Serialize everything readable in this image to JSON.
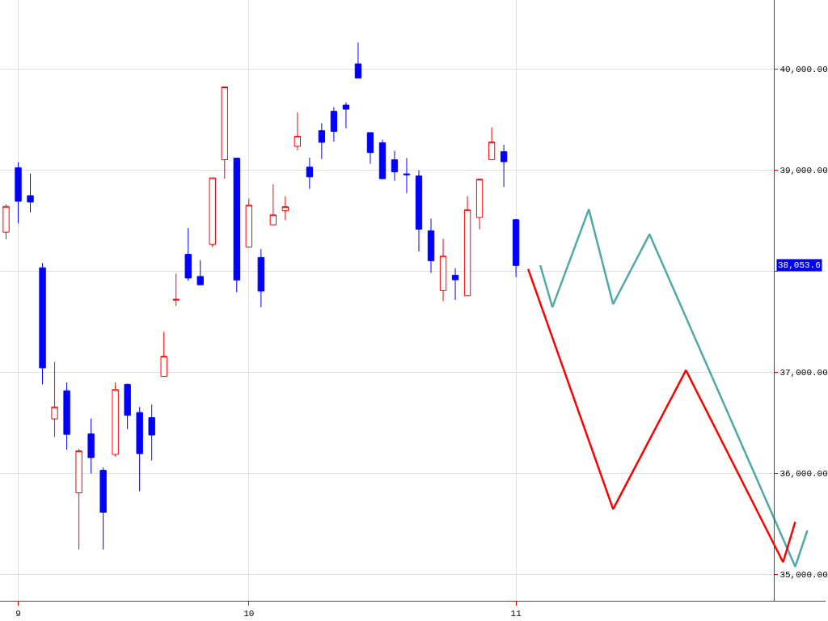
{
  "chart_data": {
    "type": "candlestick",
    "categories": [
      null,
      "9",
      null,
      null,
      null,
      null,
      null,
      null,
      null,
      null,
      null,
      null,
      null,
      null,
      null,
      null,
      null,
      null,
      null,
      null,
      "10",
      null,
      null,
      null,
      null,
      null,
      null,
      null,
      null,
      null,
      null,
      null,
      null,
      null,
      null,
      null,
      null,
      null,
      null,
      null,
      null,
      null,
      "11",
      null,
      null,
      null,
      null,
      null,
      null,
      null,
      null,
      null,
      null,
      null,
      null,
      null,
      null,
      null,
      null,
      null,
      null,
      null,
      null,
      null,
      null,
      null,
      null,
      null
    ],
    "ohlc": [
      [
        38383,
        38658,
        38313,
        38638
      ],
      [
        39021,
        39076,
        38470,
        38689
      ],
      [
        38744,
        38963,
        38579,
        38681
      ],
      [
        38031,
        38078,
        36877,
        37041
      ],
      [
        36536,
        37100,
        36356,
        36654
      ],
      [
        36814,
        36896,
        36231,
        36383
      ],
      [
        35804,
        36239,
        35244,
        36219
      ],
      [
        36387,
        36540,
        35996,
        36153
      ],
      [
        36027,
        36055,
        35244,
        35612
      ],
      [
        36184,
        36896,
        36164,
        36826
      ],
      [
        36877,
        36884,
        36434,
        36571
      ],
      [
        36599,
        36654,
        35820,
        36192
      ],
      [
        36548,
        36677,
        36125,
        36376
      ],
      [
        36955,
        37397,
        36955,
        37155
      ],
      [
        37710,
        37973,
        37652,
        37718
      ],
      [
        38164,
        38423,
        37902,
        37929
      ],
      [
        37945,
        38106,
        37863,
        37863
      ],
      [
        38262,
        38920,
        38235,
        38920
      ],
      [
        39100,
        39820,
        38912,
        39820
      ],
      [
        39115,
        39115,
        37789,
        37910
      ],
      [
        38235,
        38716,
        38235,
        38650
      ],
      [
        38133,
        38215,
        37640,
        37800
      ],
      [
        38456,
        38859,
        38456,
        38554
      ],
      [
        38595,
        38739,
        38501,
        38635
      ],
      [
        39232,
        39568,
        39192,
        39333
      ],
      [
        39027,
        39120,
        38811,
        38930
      ],
      [
        39387,
        39461,
        39107,
        39272
      ],
      [
        39579,
        39619,
        39280,
        39381
      ],
      [
        39640,
        39667,
        39411,
        39600
      ],
      [
        40048,
        40259,
        39909,
        39909
      ],
      [
        39368,
        39368,
        39059,
        39171
      ],
      [
        39267,
        39299,
        38912,
        38912
      ],
      [
        39099,
        39187,
        38891,
        38981
      ],
      [
        38960,
        39117,
        38770,
        38952
      ],
      [
        38939,
        38995,
        38192,
        38413
      ],
      [
        38397,
        38517,
        37981,
        38101
      ],
      [
        37805,
        38317,
        37701,
        38146
      ],
      [
        37957,
        38026,
        37712,
        37912
      ],
      [
        37754,
        38739,
        37754,
        38605
      ],
      [
        38528,
        38909,
        38410,
        38909
      ],
      [
        39101,
        39419,
        39093,
        39275
      ],
      [
        39179,
        39248,
        38829,
        39080
      ],
      [
        38506,
        38514,
        37939,
        38053.6
      ],
      null,
      null,
      null,
      null,
      null,
      null,
      null,
      null,
      null,
      null,
      null,
      null,
      null,
      null,
      null,
      null,
      null,
      null,
      null,
      null,
      null,
      null,
      null,
      null,
      null
    ],
    "colors": [
      "#ff0000",
      "#0000ff",
      "#0000ff",
      "#0000ff",
      "#ff0000",
      "#0000ff",
      "#ff0000",
      "#0000ff",
      "#0000ff",
      "#ff0000",
      "#0000ff",
      "#0000ff",
      "#0000ff",
      "#ff0000",
      "#ff0000",
      "#0000ff",
      "#0000ff",
      "#ff0000",
      "#ff0000",
      "#0000ff",
      "#ff0000",
      "#0000ff",
      "#ff0000",
      "#ff0000",
      "#ff0000",
      "#0000ff",
      "#0000ff",
      "#0000ff",
      "#0000ff",
      "#0000ff",
      "#0000ff",
      "#0000ff",
      "#0000ff",
      "#0000ff",
      "#0000ff",
      "#0000ff",
      "#ff0000",
      "#0000ff",
      "#ff0000",
      "#ff0000",
      "#ff0000",
      "#0000ff",
      "#0000ff",
      null,
      null,
      null,
      null,
      null,
      null,
      null,
      null,
      null,
      null,
      null,
      null,
      null,
      null,
      null,
      null,
      null,
      null,
      null,
      null,
      null,
      null,
      null,
      null,
      null
    ],
    "series": [
      {
        "type": "line",
        "color": "#52a8a8",
        "values": [
          null,
          null,
          null,
          null,
          null,
          null,
          null,
          null,
          null,
          null,
          null,
          null,
          null,
          null,
          null,
          null,
          null,
          null,
          null,
          null,
          null,
          null,
          null,
          null,
          null,
          null,
          null,
          null,
          null,
          null,
          null,
          null,
          null,
          null,
          null,
          null,
          null,
          null,
          null,
          null,
          null,
          null,
          null,
          null,
          38056,
          37641,
          null,
          null,
          38609,
          null,
          37671,
          null,
          null,
          38363,
          null,
          null,
          null,
          null,
          null,
          null,
          null,
          null,
          null,
          null,
          null,
          35074,
          35432,
          null
        ]
      },
      {
        "type": "line",
        "color": "#ff0000",
        "values": [
          null,
          null,
          null,
          null,
          null,
          null,
          null,
          null,
          null,
          null,
          null,
          null,
          null,
          null,
          null,
          null,
          null,
          null,
          null,
          null,
          null,
          null,
          null,
          null,
          null,
          null,
          null,
          null,
          null,
          null,
          null,
          null,
          null,
          null,
          null,
          null,
          null,
          null,
          null,
          null,
          null,
          null,
          null,
          38019,
          null,
          null,
          null,
          null,
          null,
          null,
          35643,
          null,
          null,
          null,
          null,
          null,
          37017,
          null,
          null,
          null,
          null,
          null,
          null,
          null,
          35118,
          35517,
          null,
          null
        ]
      }
    ],
    "ylim": [
      34736,
      40680
    ],
    "yticks": [
      {
        "value": 35000,
        "label": "35,000.00"
      },
      {
        "value": 36000,
        "label": "36,000.00"
      },
      {
        "value": 37000,
        "label": "37,000.00"
      },
      {
        "value": 38000,
        "label": null
      },
      {
        "value": 39000,
        "label": "39,000.00"
      },
      {
        "value": 40000,
        "label": "40,000.00"
      }
    ],
    "annotations": [
      "38,053.6"
    ],
    "grid": true
  }
}
